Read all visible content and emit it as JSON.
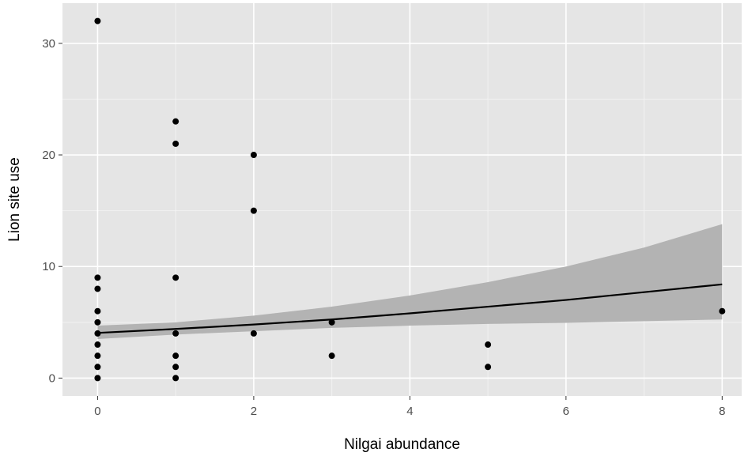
{
  "chart_data": {
    "type": "scatter",
    "xlabel": "Nilgai abundance",
    "ylabel": "Lion site use",
    "xlim": [
      -0.45,
      8.25
    ],
    "ylim": [
      -1.6,
      33.6
    ],
    "x_ticks": [
      0,
      2,
      4,
      6,
      8
    ],
    "y_ticks": [
      0,
      10,
      20,
      30
    ],
    "grid": true,
    "legend": "none",
    "colors": {
      "panel_background": "#e5e5e5",
      "grid_major": "#ffffff",
      "grid_minor": "#f2f2f2",
      "points": "#000000",
      "fit_line": "#000000",
      "confidence_band": "#b3b3b3"
    },
    "points": [
      {
        "x": 0,
        "y": 32
      },
      {
        "x": 0,
        "y": 9
      },
      {
        "x": 0,
        "y": 8
      },
      {
        "x": 0,
        "y": 6
      },
      {
        "x": 0,
        "y": 5
      },
      {
        "x": 0,
        "y": 4
      },
      {
        "x": 0,
        "y": 3
      },
      {
        "x": 0,
        "y": 2
      },
      {
        "x": 0,
        "y": 1
      },
      {
        "x": 0,
        "y": 0
      },
      {
        "x": 1,
        "y": 23
      },
      {
        "x": 1,
        "y": 21
      },
      {
        "x": 1,
        "y": 9
      },
      {
        "x": 1,
        "y": 4
      },
      {
        "x": 1,
        "y": 2
      },
      {
        "x": 1,
        "y": 1
      },
      {
        "x": 1,
        "y": 0
      },
      {
        "x": 2,
        "y": 20
      },
      {
        "x": 2,
        "y": 15
      },
      {
        "x": 2,
        "y": 4
      },
      {
        "x": 3,
        "y": 5
      },
      {
        "x": 3,
        "y": 2
      },
      {
        "x": 5,
        "y": 3
      },
      {
        "x": 5,
        "y": 1
      },
      {
        "x": 8,
        "y": 6
      }
    ],
    "fit_line": [
      {
        "x": 0,
        "y": 4.05
      },
      {
        "x": 1,
        "y": 4.4
      },
      {
        "x": 2,
        "y": 4.8
      },
      {
        "x": 3,
        "y": 5.25
      },
      {
        "x": 4,
        "y": 5.8
      },
      {
        "x": 5,
        "y": 6.4
      },
      {
        "x": 6,
        "y": 7.0
      },
      {
        "x": 7,
        "y": 7.7
      },
      {
        "x": 8,
        "y": 8.4
      }
    ],
    "confidence_band": [
      {
        "x": 0,
        "lower": 3.5,
        "upper": 4.7
      },
      {
        "x": 1,
        "lower": 3.9,
        "upper": 5.0
      },
      {
        "x": 2,
        "lower": 4.2,
        "upper": 5.6
      },
      {
        "x": 3,
        "lower": 4.5,
        "upper": 6.4
      },
      {
        "x": 4,
        "lower": 4.7,
        "upper": 7.4
      },
      {
        "x": 5,
        "lower": 4.85,
        "upper": 8.6
      },
      {
        "x": 6,
        "lower": 4.95,
        "upper": 10.0
      },
      {
        "x": 7,
        "lower": 5.1,
        "upper": 11.7
      },
      {
        "x": 8,
        "lower": 5.25,
        "upper": 13.8
      }
    ]
  }
}
